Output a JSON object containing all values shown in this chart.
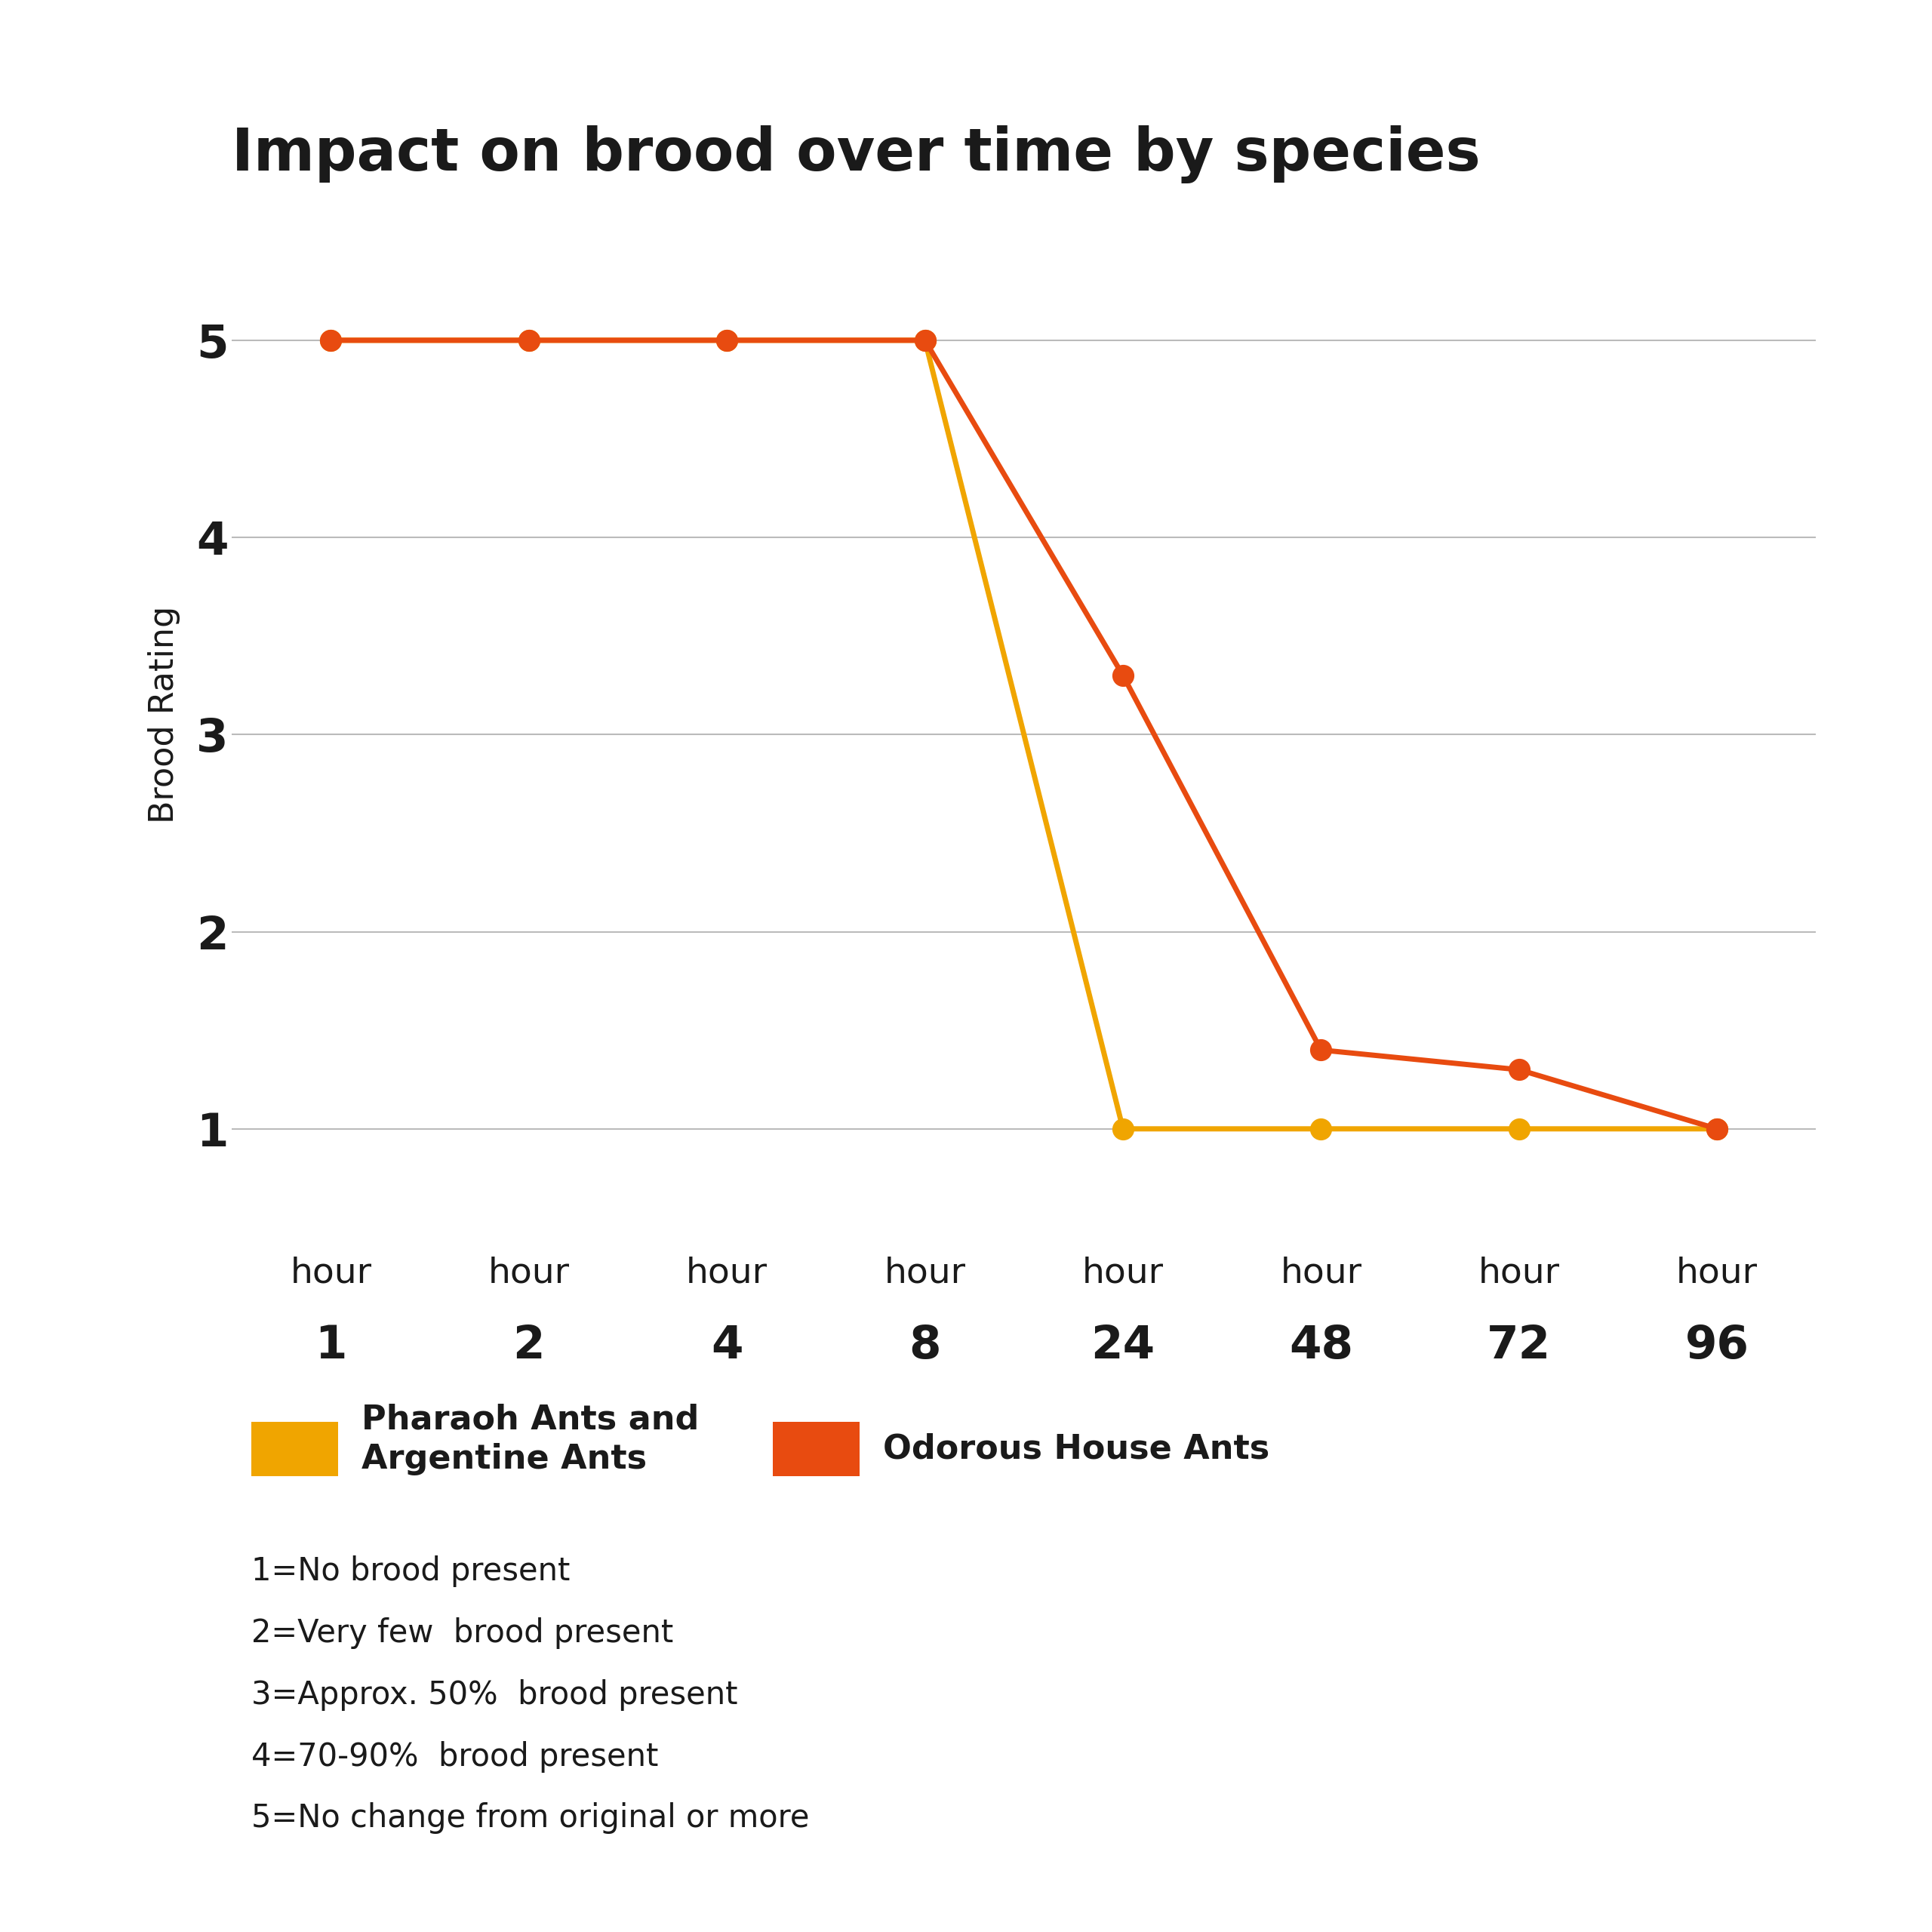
{
  "title": "Impact on brood over time by species",
  "ylabel": "Brood Rating",
  "x_labels_top": [
    "hour",
    "hour",
    "hour",
    "hour",
    "hour",
    "hour",
    "hour",
    "hour"
  ],
  "x_labels_bot": [
    "1",
    "2",
    "4",
    "8",
    "24",
    "48",
    "72",
    "96"
  ],
  "x_indices": [
    0,
    1,
    2,
    3,
    4,
    5,
    6,
    7
  ],
  "series": [
    {
      "label": "Pharaoh Ants and\nArgentine Ants",
      "color": "#F0A500",
      "values": [
        5,
        5,
        5,
        5,
        1,
        1,
        1,
        1
      ]
    },
    {
      "label": "Odorous House Ants",
      "color": "#E84B10",
      "values": [
        5,
        5,
        5,
        5,
        3.3,
        1.4,
        1.3,
        1
      ]
    }
  ],
  "yticks": [
    1,
    2,
    3,
    4,
    5
  ],
  "ylim": [
    0.65,
    5.55
  ],
  "xlim": [
    -0.5,
    7.5
  ],
  "legend_annotations": [
    "1=No brood present",
    "2=Very few  brood present",
    "3=Approx. 50%  brood present",
    "4=70-90%  brood present",
    "5=No change from original or more"
  ],
  "background_color": "#ffffff",
  "title_fontsize": 56,
  "ylabel_fontsize": 32,
  "ytick_fontsize": 44,
  "xtick_top_fontsize": 34,
  "xtick_bot_fontsize": 44,
  "annotation_fontsize": 30,
  "legend_fontsize": 32,
  "marker_size": 20,
  "line_width": 5,
  "grid_color": "#bbbbbb",
  "text_color": "#1a1a1a"
}
